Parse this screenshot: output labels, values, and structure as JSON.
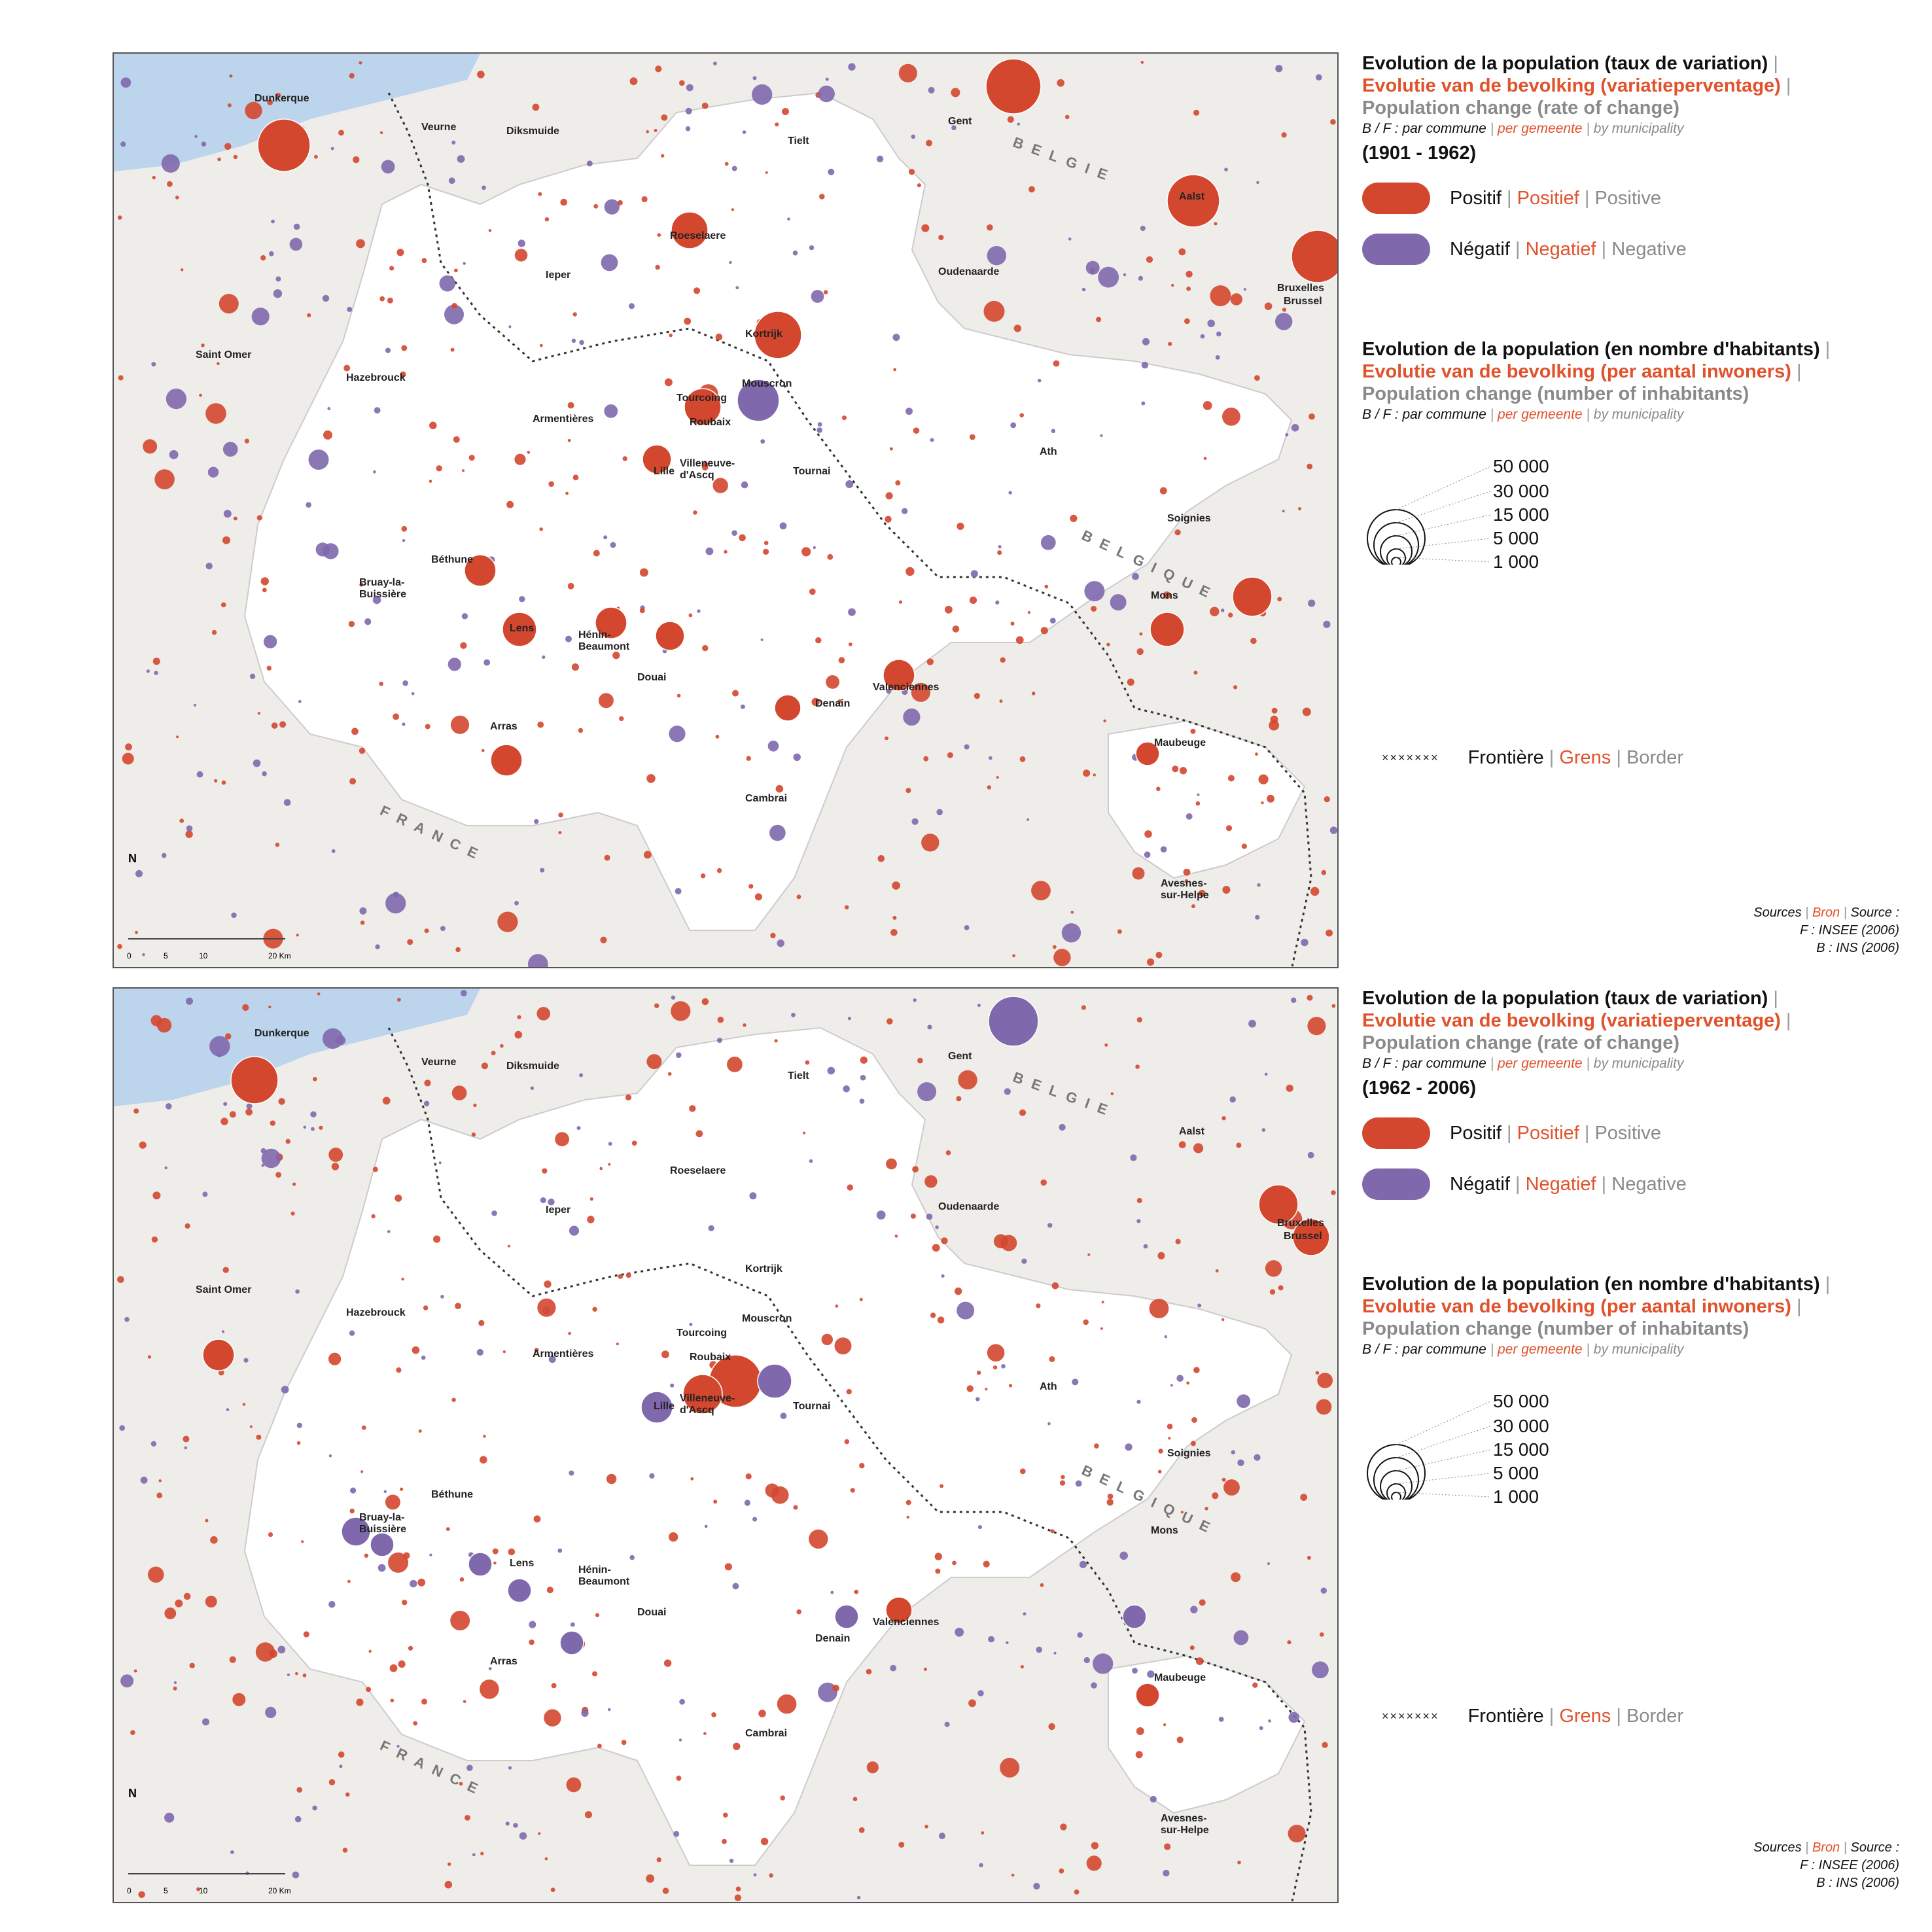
{
  "maps": [
    {
      "legend": {
        "title1": "Evolution de la population (taux de variation)",
        "title1_nl": "Evolutie van de bevolking (variatieperventage)",
        "title1_en": "Population change (rate of change)",
        "scope_fr": "B / F : par commune",
        "scope_nl": "per gemeente",
        "scope_en": "by municipality",
        "period": "(1901 - 1962)",
        "positive_fr": "Positif",
        "positive_nl": "Positief",
        "positive_en": "Positive",
        "negative_fr": "Négatif",
        "negative_nl": "Negatief",
        "negative_en": "Negative",
        "title2": "Evolution de la population (en nombre d'habitants)",
        "title2_nl": "Evolutie van de bevolking  (per aantal inwoners)",
        "title2_en": "Population change (number of inhabitants)",
        "size_labels": [
          "50 000",
          "30 000",
          "15 000",
          "5 000",
          "1 000"
        ],
        "border_fr": "Frontière",
        "border_nl": "Grens",
        "border_en": "Border",
        "sources_fr": "Sources",
        "sources_nl": "Bron",
        "sources_en": "Source :",
        "source_f": "F : INSEE (2006)",
        "source_b": "B : INS (2006)"
      },
      "places": [
        "Dunkerque",
        "Veurne",
        "Diksmuide",
        "Tielt",
        "Gent",
        "Aalst",
        "Roeselaere",
        "Ieper",
        "Oudenaarde",
        "Kortrijk",
        "Bruxelles",
        "Brussel",
        "Saint Omer",
        "Hazebrouck",
        "Mouscron",
        "Tourcoing",
        "Armentières",
        "Roubaix",
        "Lille",
        "Villeneuve-",
        "d'Ascq",
        "Tournai",
        "Ath",
        "Soignies",
        "Béthune",
        "Bruay-la-",
        "Buissière",
        "Lens",
        "Hénin-",
        "Beaumont",
        "Douai",
        "Valenciennes",
        "Mons",
        "Denain",
        "Arras",
        "Maubeuge",
        "Cambrai",
        "Avesnes-",
        "sur-Helpe"
      ],
      "countries": [
        "BELGIE",
        "BELGIQUE",
        "FRANCE"
      ],
      "scale": {
        "north": "N",
        "ticks": [
          "0",
          "5",
          "10",
          "20 Km"
        ]
      }
    },
    {
      "legend": {
        "title1": "Evolution de la population (taux de variation)",
        "title1_nl": "Evolutie van de bevolking (variatieperventage)",
        "title1_en": "Population change (rate of change)",
        "scope_fr": "B / F : par commune",
        "scope_nl": "per gemeente",
        "scope_en": "by municipality",
        "period": "(1962 - 2006)",
        "positive_fr": "Positif",
        "positive_nl": "Positief",
        "positive_en": "Positive",
        "negative_fr": "Négatif",
        "negative_nl": "Negatief",
        "negative_en": "Negative",
        "title2": "Evolution de la population (en nombre d'habitants)",
        "title2_nl": "Evolutie van de bevolking  (per aantal inwoners)",
        "title2_en": "Population change (number of inhabitants)",
        "size_labels": [
          "50 000",
          "30 000",
          "15 000",
          "5 000",
          "1 000"
        ],
        "border_fr": "Frontière",
        "border_nl": "Grens",
        "border_en": "Border",
        "sources_fr": "Sources",
        "sources_nl": "Bron",
        "sources_en": "Source :",
        "source_f": "F : INSEE (2006)",
        "source_b": "B : INS (2006)"
      },
      "places": [
        "Dunkerque",
        "Veurne",
        "Diksmuide",
        "Tielt",
        "Gent",
        "Aalst",
        "Roeselaere",
        "Ieper",
        "Oudenaarde",
        "Kortrijk",
        "Bruxelles",
        "Brussel",
        "Saint Omer",
        "Hazebrouck",
        "Mouscron",
        "Tourcoing",
        "Armentières",
        "Roubaix",
        "Lille",
        "Villeneuve-",
        "d'Ascq",
        "Tournai",
        "Ath",
        "Soignies",
        "Béthune",
        "Bruay-la-",
        "Buissière",
        "Lens",
        "Hénin-",
        "Beaumont",
        "Douai",
        "Valenciennes",
        "Mons",
        "Denain",
        "Arras",
        "Maubeuge",
        "Cambrai",
        "Avesnes-",
        "sur-Helpe"
      ],
      "countries": [
        "BELGIE",
        "BELGIQUE",
        "FRANCE"
      ],
      "scale": {
        "north": "N",
        "ticks": [
          "0",
          "5",
          "10",
          "20 Km"
        ]
      }
    }
  ],
  "colors": {
    "positive": "#d4472f",
    "negative": "#8068ad",
    "background": "#eeedea",
    "study_area": "#ffffff",
    "sea": "#bcd4ec",
    "border": "#333333"
  }
}
